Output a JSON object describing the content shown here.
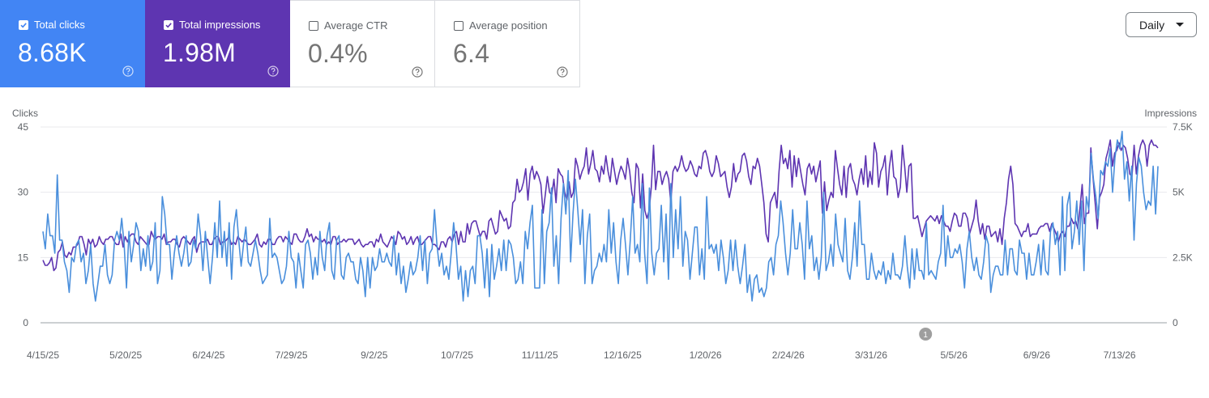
{
  "cards": [
    {
      "label": "Total clicks",
      "value": "8.68K",
      "checked": true
    },
    {
      "label": "Total impressions",
      "value": "1.98M",
      "checked": true
    },
    {
      "label": "Average CTR",
      "value": "0.4%",
      "checked": false
    },
    {
      "label": "Average position",
      "value": "6.4",
      "checked": false
    }
  ],
  "period_selector": {
    "label": "Daily"
  },
  "colors": {
    "clicks": "#4a8fdc",
    "impressions": "#5e35b1",
    "clicks_card": "#4285f4",
    "impressions_card": "#5e35b1"
  },
  "icons": {
    "card_help": "help-circle-icon",
    "checkbox": "checkbox-icon",
    "dropdown": "caret-down-icon"
  },
  "chart_data": {
    "type": "line",
    "left_axis": {
      "title": "Clicks",
      "ticks": [
        "0",
        "15",
        "30",
        "45"
      ],
      "range": [
        0,
        45
      ]
    },
    "right_axis": {
      "title": "Impressions",
      "ticks": [
        "0",
        "2.5K",
        "5K",
        "7.5K"
      ],
      "range": [
        0,
        7500
      ]
    },
    "x_ticks": [
      "4/15/25",
      "5/20/25",
      "6/24/25",
      "7/29/25",
      "9/2/25",
      "10/7/25",
      "11/11/25",
      "12/16/25",
      "1/20/26",
      "2/24/26",
      "3/31/26",
      "5/5/26",
      "6/9/26",
      "7/13/26"
    ],
    "annotation": {
      "label": "1",
      "date": "4/23/26"
    },
    "series": [
      {
        "name": "Clicks",
        "axis": "left",
        "color": "#4a8fdc",
        "values": [
          21,
          17,
          25,
          20,
          20,
          16,
          34,
          19,
          19,
          14,
          12,
          7,
          15,
          14,
          18,
          19,
          14,
          16,
          9,
          12,
          18,
          9,
          5,
          9,
          13,
          13,
          18,
          11,
          9,
          11,
          19,
          21,
          19,
          24,
          18,
          8,
          21,
          14,
          18,
          23,
          21,
          12,
          17,
          13,
          20,
          12,
          14,
          23,
          9,
          12,
          29,
          25,
          18,
          18,
          10,
          16,
          20,
          16,
          13,
          16,
          20,
          13,
          14,
          19,
          17,
          25,
          20,
          12,
          21,
          15,
          9,
          15,
          23,
          15,
          28,
          15,
          21,
          13,
          23,
          10,
          22,
          26,
          19,
          13,
          18,
          22,
          14,
          13,
          16,
          19,
          16,
          12,
          9,
          10,
          11,
          24,
          15,
          16,
          15,
          12,
          9,
          10,
          13,
          21,
          15,
          14,
          8,
          16,
          12,
          8,
          18,
          19,
          16,
          10,
          15,
          11,
          21,
          15,
          12,
          20,
          23,
          12,
          10,
          19,
          20,
          11,
          10,
          15,
          16,
          14,
          14,
          10,
          9,
          15,
          12,
          6,
          15,
          8,
          15,
          12,
          13,
          17,
          14,
          14,
          16,
          14,
          13,
          20,
          11,
          16,
          9,
          13,
          7,
          10,
          14,
          11,
          12,
          15,
          20,
          12,
          19,
          9,
          16,
          17,
          26,
          18,
          13,
          16,
          11,
          13,
          10,
          16,
          23,
          18,
          10,
          13,
          5,
          12,
          6,
          12,
          13,
          9,
          20,
          20,
          16,
          8,
          17,
          6,
          18,
          10,
          13,
          17,
          12,
          19,
          12,
          19,
          18,
          15,
          9,
          10,
          14,
          9,
          21,
          17,
          23,
          27,
          8,
          8,
          8,
          26,
          9,
          21,
          23,
          31,
          13,
          20,
          9,
          24,
          32,
          25,
          35,
          14,
          25,
          33,
          26,
          18,
          26,
          9,
          20,
          25,
          9,
          12,
          13,
          16,
          14,
          18,
          14,
          26,
          16,
          23,
          14,
          9,
          19,
          24,
          18,
          11,
          19,
          29,
          16,
          18,
          14,
          32,
          16,
          9,
          31,
          16,
          11,
          16,
          17,
          27,
          14,
          25,
          10,
          32,
          15,
          26,
          17,
          29,
          13,
          21,
          19,
          10,
          16,
          22,
          22,
          11,
          17,
          10,
          29,
          17,
          18,
          16,
          18,
          12,
          19,
          15,
          9,
          12,
          19,
          12,
          19,
          13,
          9,
          13,
          18,
          7,
          11,
          5,
          10,
          11,
          7,
          8,
          6,
          8,
          14,
          15,
          11,
          18,
          20,
          28,
          23,
          16,
          11,
          16,
          26,
          17,
          17,
          23,
          18,
          10,
          28,
          17,
          20,
          12,
          15,
          10,
          15,
          30,
          12,
          14,
          18,
          13,
          25,
          18,
          16,
          14,
          24,
          12,
          10,
          15,
          23,
          13,
          28,
          18,
          18,
          10,
          10,
          16,
          12,
          10,
          12,
          11,
          14,
          9,
          12,
          10,
          16,
          11,
          11,
          10,
          13,
          20,
          13,
          8,
          17,
          10,
          17,
          12,
          12,
          10,
          23,
          11,
          12,
          11,
          10,
          14,
          16,
          27,
          13,
          20,
          15,
          15,
          17,
          16,
          18,
          14,
          8,
          17,
          21,
          15,
          12,
          15,
          11,
          10,
          14,
          20,
          18,
          7,
          11,
          13,
          13,
          11,
          11,
          19,
          11,
          17,
          17,
          12,
          11,
          19,
          16,
          16,
          10,
          16,
          11,
          11,
          14,
          18,
          11,
          19,
          12,
          11,
          21,
          23,
          18,
          21,
          11,
          29,
          12,
          27,
          30,
          17,
          21,
          28,
          18,
          28,
          12,
          29,
          26,
          39,
          33,
          29,
          24,
          35,
          34,
          37,
          36,
          40,
          30,
          38,
          42,
          40,
          44,
          33,
          37,
          28,
          36,
          19,
          32,
          38,
          36,
          30,
          26,
          28,
          27,
          36,
          25,
          36
        ]
      },
      {
        "name": "Impressions",
        "axis": "right",
        "color": "#5e35b1",
        "values": [
          2400,
          2200,
          2200,
          2300,
          2500,
          2000,
          2100,
          2700,
          2800,
          3100,
          2600,
          2500,
          2700,
          2600,
          2900,
          2900,
          3000,
          3300,
          3300,
          3000,
          2600,
          3200,
          3000,
          3200,
          2900,
          3000,
          3300,
          3100,
          3000,
          3200,
          3200,
          3300,
          3300,
          3100,
          3000,
          3000,
          3400,
          2900,
          3300,
          3100,
          3300,
          3400,
          3400,
          3100,
          3000,
          3300,
          3200,
          3100,
          3000,
          3000,
          3500,
          3300,
          3200,
          3300,
          3300,
          3200,
          3400,
          3000,
          3100,
          3100,
          3200,
          3200,
          3000,
          2900,
          3200,
          3300,
          3200,
          3100,
          3000,
          3200,
          3300,
          2700,
          3000,
          3100,
          3100,
          3100,
          3200,
          3000,
          3000,
          3200,
          3300,
          3300,
          3000,
          3100,
          3100,
          3200,
          3300,
          3000,
          3100,
          3000,
          3300,
          3200,
          3100,
          3200,
          3100,
          3000,
          3000,
          3100,
          3200,
          3400,
          3000,
          2900,
          3100,
          3000,
          3200,
          3200,
          3000,
          3000,
          3200,
          3300,
          3300,
          3100,
          3300,
          3200,
          3100,
          3000,
          3400,
          3400,
          3200,
          3100,
          3100,
          3300,
          3600,
          3300,
          3400,
          3100,
          3300,
          3200,
          3200,
          3100,
          3200,
          3000,
          3100,
          3000,
          3300,
          3300,
          3000,
          3100,
          3100,
          3200,
          3100,
          3200,
          3200,
          3200,
          3000,
          3100,
          3200,
          3000,
          2900,
          3000,
          3000,
          3100,
          3100,
          2900,
          3200,
          3100,
          3400,
          3100,
          3000,
          2900,
          3100,
          3300,
          3200,
          3000,
          3500,
          3400,
          3200,
          3300,
          3000,
          3100,
          3300,
          3000,
          3200,
          3300,
          3000,
          3000,
          3100,
          3200,
          3300,
          3300,
          3000,
          3000,
          2900,
          2800,
          3100,
          3100,
          2900,
          3200,
          3300,
          3100,
          3400,
          3500,
          3000,
          3500,
          3100,
          3100,
          3800,
          3400,
          3800,
          3900,
          3900,
          3600,
          3300,
          3500,
          3500,
          3200,
          3900,
          4000,
          3700,
          3400,
          3500,
          4300,
          4100,
          3900,
          4000,
          3600,
          3700,
          4600,
          4700,
          5500,
          5000,
          5100,
          5400,
          5900,
          4700,
          5700,
          6000,
          5500,
          5800,
          5600,
          5300,
          4200,
          4900,
          5600,
          5000,
          4900,
          5500,
          4600,
          5900,
          5700,
          5600,
          5000,
          4700,
          5400,
          4800,
          5000,
          6300,
          6000,
          5500,
          5800,
          6000,
          6700,
          5700,
          6100,
          6600,
          5900,
          5800,
          5400,
          6000,
          5700,
          6400,
          5800,
          5400,
          6300,
          5800,
          5300,
          5700,
          6000,
          5800,
          5500,
          6300,
          5800,
          5000,
          4600,
          6100,
          5900,
          4400,
          5700,
          4300,
          4000,
          4300,
          5200,
          6800,
          5100,
          5800,
          5800,
          5300,
          5600,
          5800,
          5500,
          4600,
          5800,
          6000,
          5800,
          6000,
          6400,
          6000,
          5800,
          5900,
          6200,
          6000,
          5700,
          5600,
          6000,
          5900,
          6500,
          6600,
          6300,
          5800,
          5600,
          5800,
          6400,
          6100,
          5600,
          5700,
          5800,
          5200,
          4800,
          5200,
          6100,
          5400,
          5700,
          5800,
          6400,
          6500,
          6200,
          5600,
          5300,
          6000,
          5900,
          6300,
          6000,
          5300,
          4600,
          3400,
          3100,
          4600,
          4800,
          5000,
          4400,
          5800,
          6800,
          6100,
          6300,
          5900,
          6600,
          5200,
          6400,
          5600,
          6300,
          5800,
          5300,
          4900,
          5900,
          6100,
          5700,
          6000,
          5400,
          5800,
          6200,
          4200,
          5400,
          4300,
          4700,
          5000,
          4800,
          6600,
          5900,
          5300,
          4900,
          6000,
          4800,
          5900,
          6100,
          5500,
          5300,
          4900,
          5500,
          5900,
          5300,
          6400,
          5200,
          5800,
          5300,
          6900,
          6500,
          5200,
          5800,
          6000,
          6400,
          4900,
          6000,
          6600,
          5600,
          5500,
          4800,
          5200,
          6800,
          6000,
          5000,
          6000,
          6100,
          4000,
          4000,
          4100,
          3700,
          3300,
          3600,
          3900,
          4000,
          4100,
          4000,
          3900,
          4100,
          3800,
          4100,
          3900,
          3700,
          3700,
          3500,
          3900,
          4200,
          4100,
          3700,
          3700,
          4200,
          4200,
          4000,
          3400,
          3700,
          4000,
          4700,
          3900,
          3400,
          3800,
          3200,
          3700,
          3700,
          3300,
          3400,
          3500,
          3100,
          3600,
          3000,
          4000,
          4600,
          5500,
          6000,
          5300,
          3800,
          3700,
          3500,
          3300,
          3500,
          3500,
          3800,
          3300,
          3400,
          3400,
          3400,
          3600,
          3700,
          3700,
          3800,
          3800,
          3500,
          3800,
          3600,
          3400,
          3100,
          3400,
          3500,
          3300,
          3700,
          3700,
          4000,
          3800,
          3900,
          3600,
          4400,
          5300,
          3800,
          4200,
          4200,
          6700,
          5600,
          4600,
          3600,
          4800,
          5000,
          5300,
          6300,
          6600,
          7000,
          6000,
          6500,
          6600,
          6900,
          6600,
          6800,
          6700,
          6300,
          5700,
          5600,
          6800,
          5700,
          6400,
          6800,
          7000,
          6800,
          6000,
          6800,
          7000,
          6800,
          6800,
          6700
        ]
      }
    ]
  }
}
